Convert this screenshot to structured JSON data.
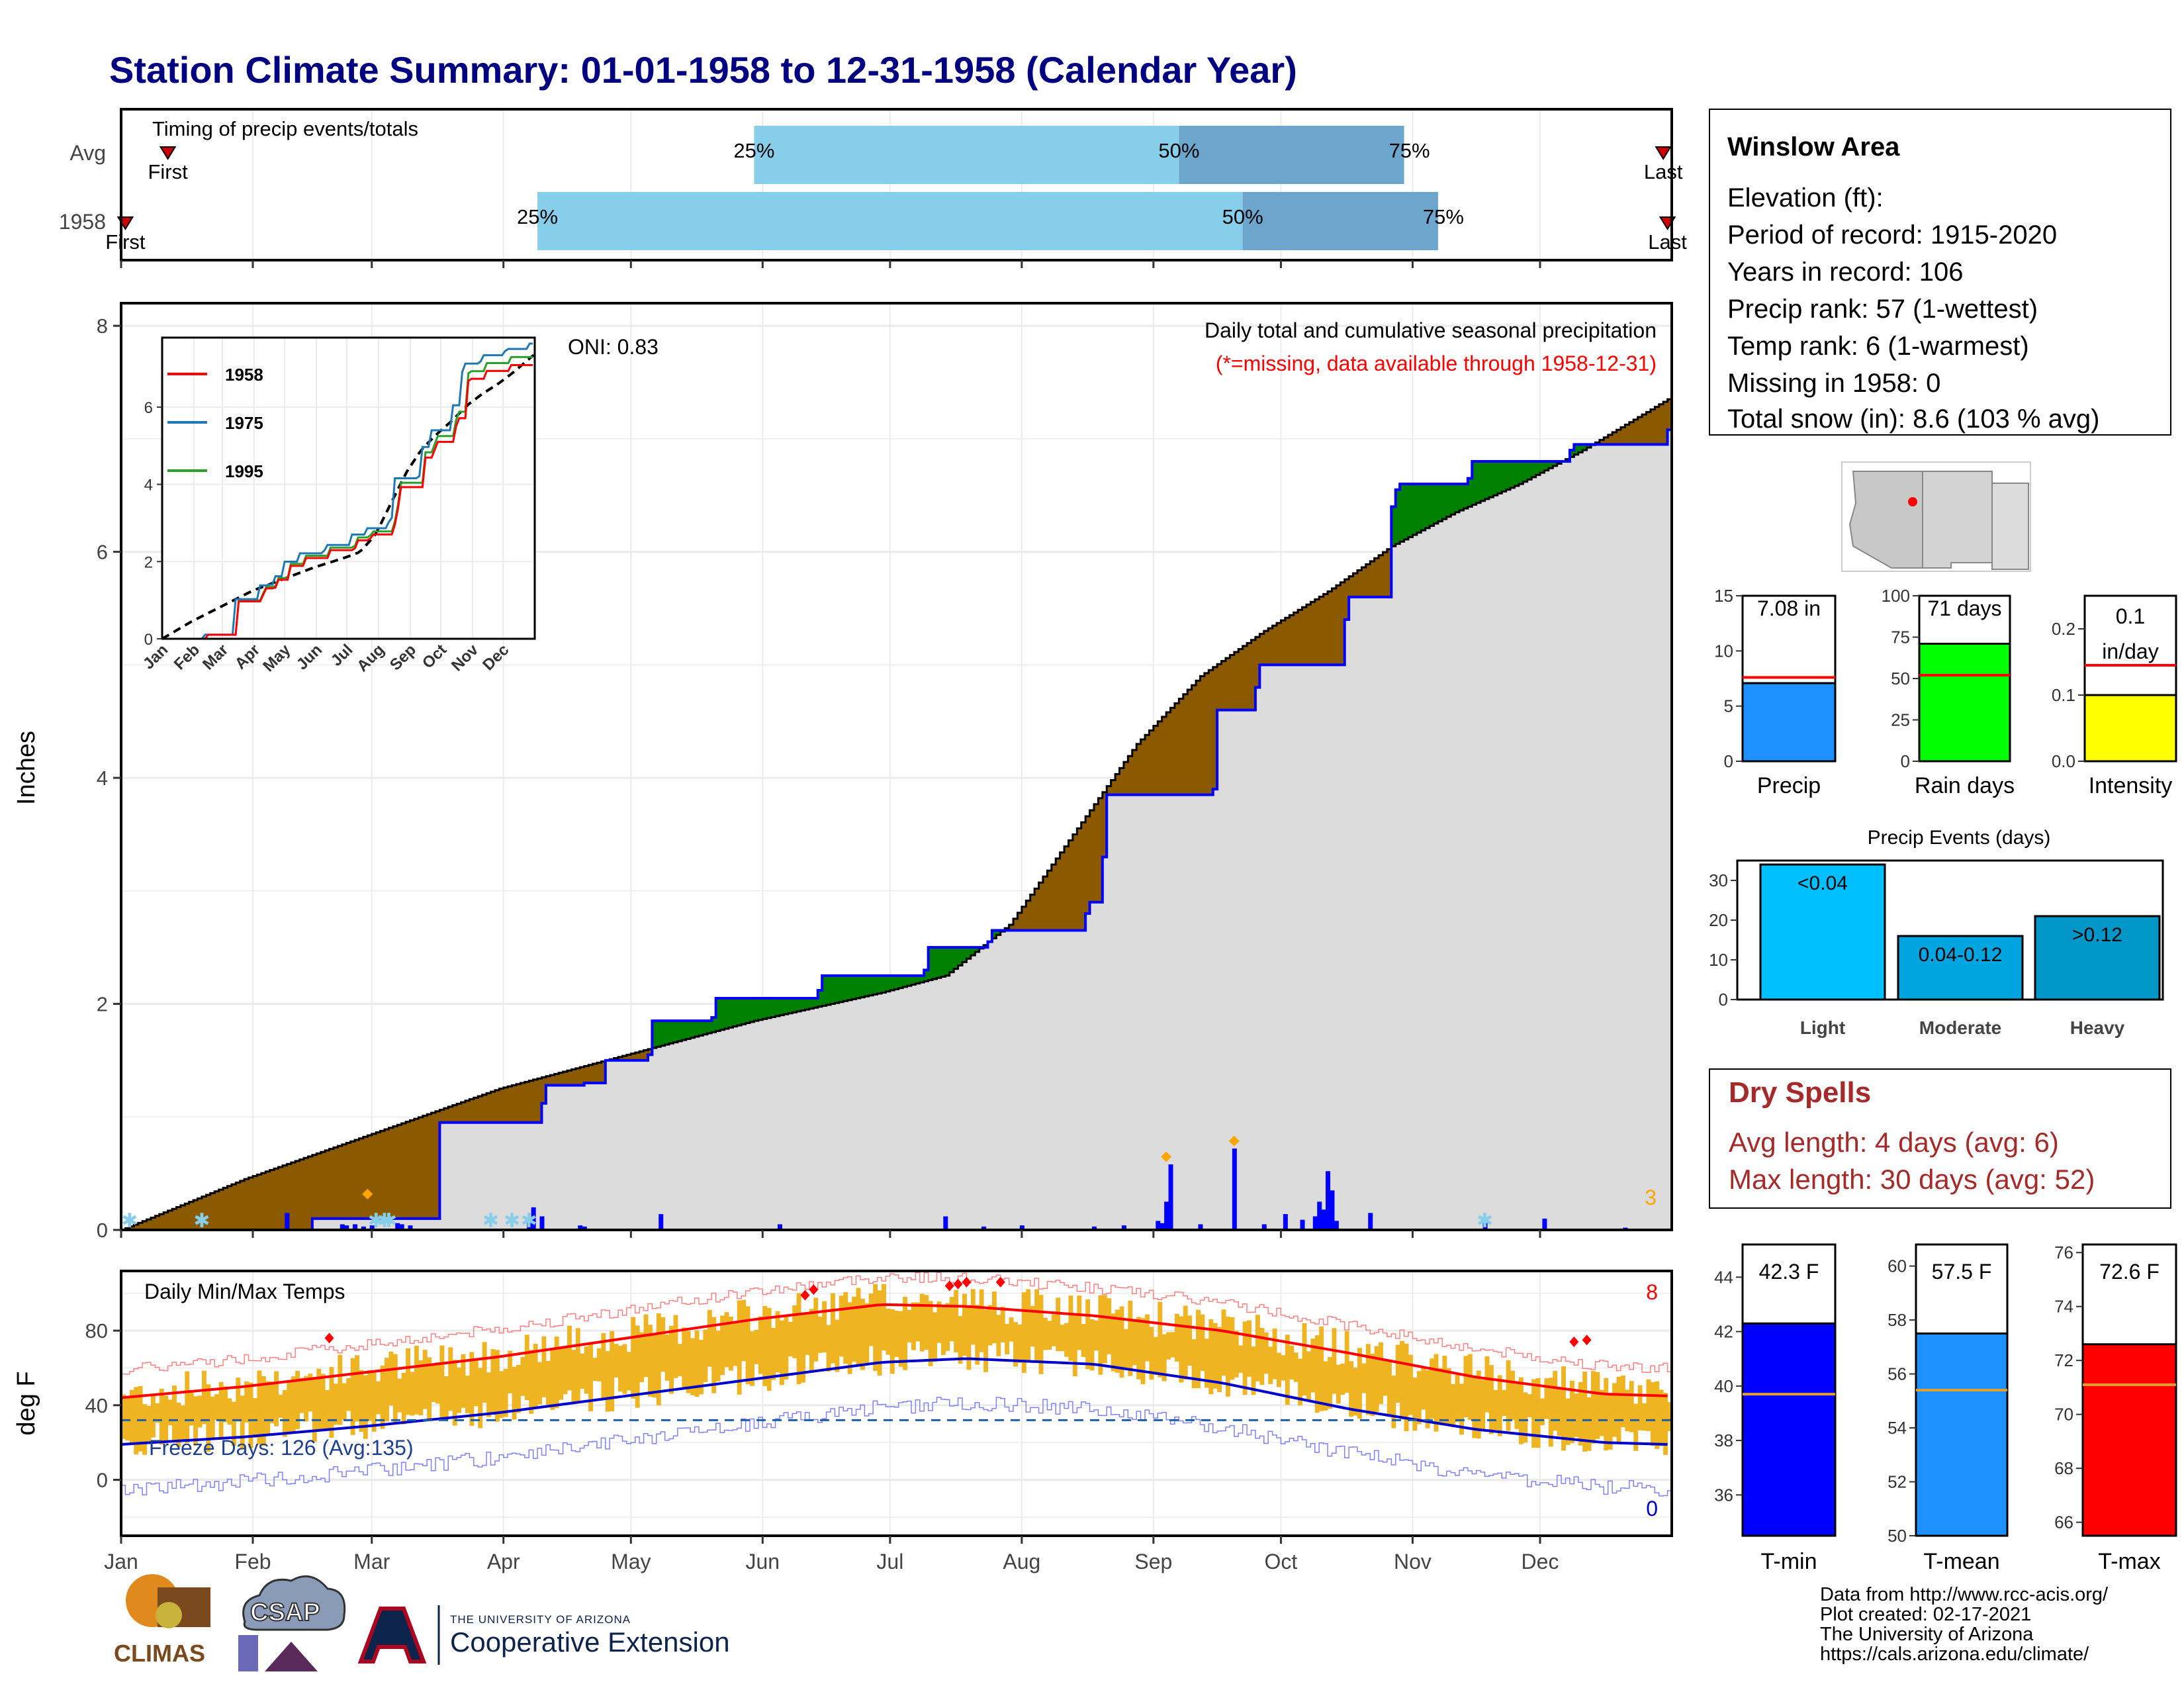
{
  "title": "Station Climate Summary: 01-01-1958 to 12-31-1958 (Calendar Year)",
  "timing": {
    "label": "Timing of precip events/totals",
    "rows": [
      {
        "row_label": "Avg",
        "first_label": "First",
        "last_label": "Last",
        "first_day": 12,
        "last_day": 364,
        "p25_day": 150,
        "p50_day": 250,
        "p75_day": 303,
        "p25_label": "25%",
        "p50_label": "50%",
        "p75_label": "75%"
      },
      {
        "row_label": "1958",
        "first_label": "First",
        "last_label": "Last",
        "first_day": 2,
        "last_day": 365,
        "p25_day": 99,
        "p50_day": 265,
        "p75_day": 311,
        "p25_label": "25%",
        "p50_label": "50%",
        "p75_label": "75%"
      }
    ]
  },
  "precip_panel": {
    "ylabel": "Inches",
    "yticks": [
      "0",
      "2",
      "4",
      "6",
      "8"
    ],
    "oni_label": "ONI: 0.83",
    "note1": "Daily total and cumulative seasonal precipitation",
    "note2": "(*=missing, data available through 1958-12-31)",
    "corner_count": "3",
    "inset_legend": [
      "1958",
      "1975",
      "1995"
    ],
    "inset_yticks": [
      "0",
      "2",
      "4",
      "6"
    ],
    "inset_xticks": [
      "Jan",
      "Feb",
      "Mar",
      "Apr",
      "May",
      "Jun",
      "Jul",
      "Aug",
      "Sep",
      "Oct",
      "Nov",
      "Dec"
    ]
  },
  "temp_panel": {
    "ylabel": "deg F",
    "yticks": [
      "0",
      "40",
      "80"
    ],
    "label": "Daily Min/Max Temps",
    "freeze_label": "Freeze Days: 126 (Avg:135)",
    "max_record_count": "8",
    "min_record_count": "0"
  },
  "months": [
    "Jan",
    "Feb",
    "Mar",
    "Apr",
    "May",
    "Jun",
    "Jul",
    "Aug",
    "Sep",
    "Oct",
    "Nov",
    "Dec"
  ],
  "station": {
    "name": "Winslow Area",
    "lines": [
      "Elevation (ft):",
      "Period of record: 1915-2020",
      "Years in record: 106",
      "Precip rank: 57 (1-wettest)",
      "Temp rank: 6 (1-warmest)",
      "Missing in 1958: 0",
      "Total snow (in): 8.6 (103 % avg)"
    ]
  },
  "mini_bars": [
    {
      "label": "Precip",
      "value_text": "7.08 in",
      "value": 7.08,
      "avg": 7.6,
      "ylim": [
        0,
        15
      ],
      "yticks": [
        "0",
        "5",
        "10",
        "15"
      ],
      "color": "#1e90ff",
      "avg_color": "#ff0000"
    },
    {
      "label": "Rain days",
      "value_text": "71 days",
      "value": 71,
      "avg": 52,
      "ylim": [
        0,
        100
      ],
      "yticks": [
        "0",
        "25",
        "50",
        "75",
        "100"
      ],
      "color": "#00ff00",
      "avg_color": "#ff0000"
    },
    {
      "label": "Intensity",
      "value_text": "0.1 in/day",
      "value_text_1": "0.1",
      "value_text_2": "in/day",
      "value": 0.1,
      "avg": 0.145,
      "ylim": [
        0,
        0.25
      ],
      "yticks": [
        "0.0",
        "0.1",
        "0.2"
      ],
      "color": "#ffff00",
      "avg_color": "#ff0000"
    }
  ],
  "precip_events": {
    "title": "Precip Events (days)",
    "yticks": [
      "0",
      "10",
      "20",
      "30"
    ],
    "bars": [
      {
        "label": "Light",
        "bar_label": "<0.04",
        "value": 34,
        "color": "#00bfff"
      },
      {
        "label": "Moderate",
        "bar_label": "0.04-0.12",
        "value": 16,
        "color": "#00a5e0"
      },
      {
        "label": "Heavy",
        "bar_label": ">0.12",
        "value": 21,
        "color": "#0096c7"
      }
    ]
  },
  "dry_spells": {
    "title": "Dry Spells",
    "avg_line": "Avg length: 4 days (avg: 6)",
    "max_line": "Max length: 30 days (avg: 52)"
  },
  "temp_bars": [
    {
      "label": "T-min",
      "value_text": "42.3 F",
      "value": 42.3,
      "avg": 39.7,
      "ylim": [
        34.5,
        45.2
      ],
      "yticks": [
        "36",
        "38",
        "40",
        "42",
        "44"
      ],
      "color": "#0000ff"
    },
    {
      "label": "T-mean",
      "value_text": "57.5 F",
      "value": 57.5,
      "avg": 55.4,
      "ylim": [
        50,
        60.8
      ],
      "yticks": [
        "50",
        "52",
        "54",
        "56",
        "58",
        "60"
      ],
      "color": "#1e90ff"
    },
    {
      "label": "T-max",
      "value_text": "72.6 F",
      "value": 72.6,
      "avg": 71.1,
      "ylim": [
        65.5,
        76.3
      ],
      "yticks": [
        "66",
        "68",
        "70",
        "72",
        "74",
        "76"
      ],
      "color": "#ff0000"
    }
  ],
  "footer": {
    "lines": [
      "Data from http://www.rcc-acis.org/",
      "Plot created: 02-17-2021",
      "The University of Arizona",
      "https://cals.arizona.edu/climate/"
    ],
    "logo1": "CLIMAS",
    "logo2": "CSAP",
    "logo3_small": "THE UNIVERSITY OF ARIZONA",
    "logo3_big": "Cooperative Extension"
  },
  "chart_data": {
    "type": "area",
    "title": "Daily total and cumulative seasonal precipitation",
    "ylabel": "Inches",
    "ylim": [
      0,
      8.2
    ],
    "x_units": "day of year",
    "cumulative_1958": {
      "x": [
        1,
        45,
        46,
        75,
        76,
        100,
        101,
        110,
        115,
        125,
        126,
        140,
        141,
        165,
        166,
        190,
        191,
        205,
        206,
        228,
        229,
        232,
        233,
        258,
        259,
        268,
        269,
        289,
        290,
        300,
        301,
        302,
        303,
        318,
        319,
        342,
        343,
        365
      ],
      "y": [
        0.0,
        0.0,
        0.1,
        0.1,
        0.95,
        1.12,
        1.28,
        1.3,
        1.5,
        1.55,
        1.85,
        1.88,
        2.05,
        2.12,
        2.25,
        2.3,
        2.5,
        2.55,
        2.65,
        2.8,
        2.9,
        3.3,
        3.85,
        3.9,
        4.6,
        4.8,
        5.0,
        5.4,
        5.6,
        6.4,
        6.55,
        6.6,
        6.6,
        6.65,
        6.8,
        6.9,
        6.95,
        7.08
      ]
    },
    "cumulative_avg": {
      "x": [
        1,
        30,
        60,
        90,
        120,
        150,
        180,
        195,
        210,
        225,
        240,
        255,
        270,
        285,
        300,
        315,
        330,
        345,
        365
      ],
      "y": [
        0.0,
        0.45,
        0.85,
        1.25,
        1.55,
        1.85,
        2.1,
        2.25,
        2.7,
        3.5,
        4.3,
        4.9,
        5.3,
        5.65,
        6.05,
        6.35,
        6.6,
        6.9,
        7.35
      ]
    },
    "daily_precip": {
      "x": [
        40,
        53,
        54,
        56,
        58,
        60,
        66,
        67,
        69,
        97,
        98,
        100,
        109,
        110,
        128,
        156,
        195,
        204,
        213,
        230,
        237,
        245,
        246,
        247,
        248,
        255,
        263,
        270,
        275,
        279,
        282,
        283,
        284,
        285,
        286,
        287,
        295,
        322,
        336,
        355
      ],
      "y": [
        0.15,
        0.05,
        0.04,
        0.05,
        0.03,
        0.04,
        0.06,
        0.05,
        0.04,
        0.09,
        0.2,
        0.12,
        0.04,
        0.03,
        0.14,
        0.05,
        0.12,
        0.03,
        0.04,
        0.03,
        0.04,
        0.08,
        0.06,
        0.25,
        0.58,
        0.05,
        0.72,
        0.05,
        0.14,
        0.09,
        0.12,
        0.25,
        0.18,
        0.52,
        0.35,
        0.08,
        0.15,
        0.06,
        0.1,
        0.02
      ]
    },
    "temperature": {
      "ylabel": "deg F",
      "ylim": [
        -30,
        112
      ],
      "avg_max_x": [
        1,
        30,
        60,
        90,
        120,
        150,
        180,
        200,
        230,
        260,
        290,
        320,
        350,
        365
      ],
      "avg_max_y": [
        44,
        50,
        58,
        66,
        76,
        86,
        94,
        93,
        88,
        80,
        68,
        55,
        46,
        45
      ],
      "avg_min_x": [
        1,
        30,
        60,
        90,
        120,
        150,
        180,
        200,
        230,
        260,
        290,
        320,
        350,
        365
      ],
      "avg_min_y": [
        19,
        23,
        29,
        36,
        45,
        54,
        63,
        65,
        62,
        52,
        38,
        27,
        20,
        19
      ],
      "freeze_line": 32
    }
  }
}
